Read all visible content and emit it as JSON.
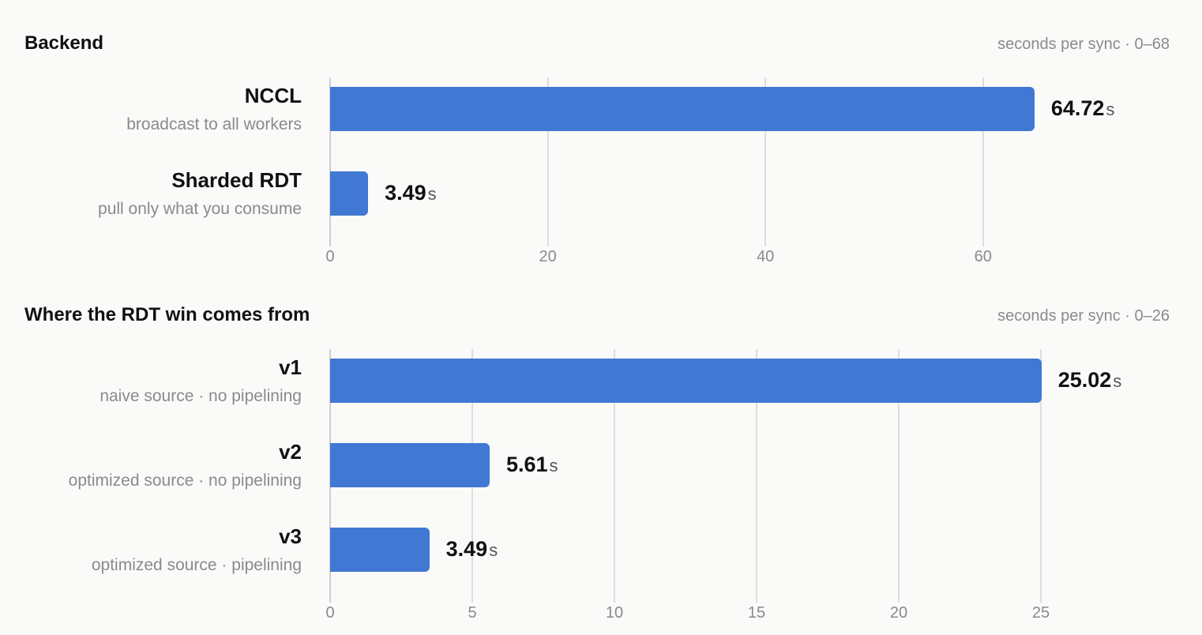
{
  "chart_data": [
    {
      "type": "bar",
      "orientation": "horizontal",
      "title": "Backend",
      "scale_note": "seconds per sync · 0–68",
      "categories": [
        "NCCL",
        "Sharded RDT"
      ],
      "subtitles": [
        "broadcast to all workers",
        "pull only what you consume"
      ],
      "values": [
        64.72,
        3.49
      ],
      "value_labels": [
        "64.72",
        "3.49"
      ],
      "unit": "s",
      "xlim": [
        0,
        68
      ],
      "xticks": [
        0,
        20,
        40,
        60
      ],
      "grid": true
    },
    {
      "type": "bar",
      "orientation": "horizontal",
      "title": "Where the RDT win comes from",
      "scale_note": "seconds per sync · 0–26",
      "categories": [
        "v1",
        "v2",
        "v3"
      ],
      "subtitles": [
        "naive source · no pipelining",
        "optimized source · no pipelining",
        "optimized source · pipelining"
      ],
      "values": [
        25.02,
        5.61,
        3.49
      ],
      "value_labels": [
        "25.02",
        "5.61",
        "3.49"
      ],
      "unit": "s",
      "xlim": [
        0,
        26
      ],
      "xticks": [
        0,
        5,
        10,
        15,
        20,
        25
      ],
      "grid": true
    }
  ],
  "colors": {
    "bar": "#4178d3",
    "grid": "#dedede",
    "muted_text": "#8a8a8a"
  }
}
